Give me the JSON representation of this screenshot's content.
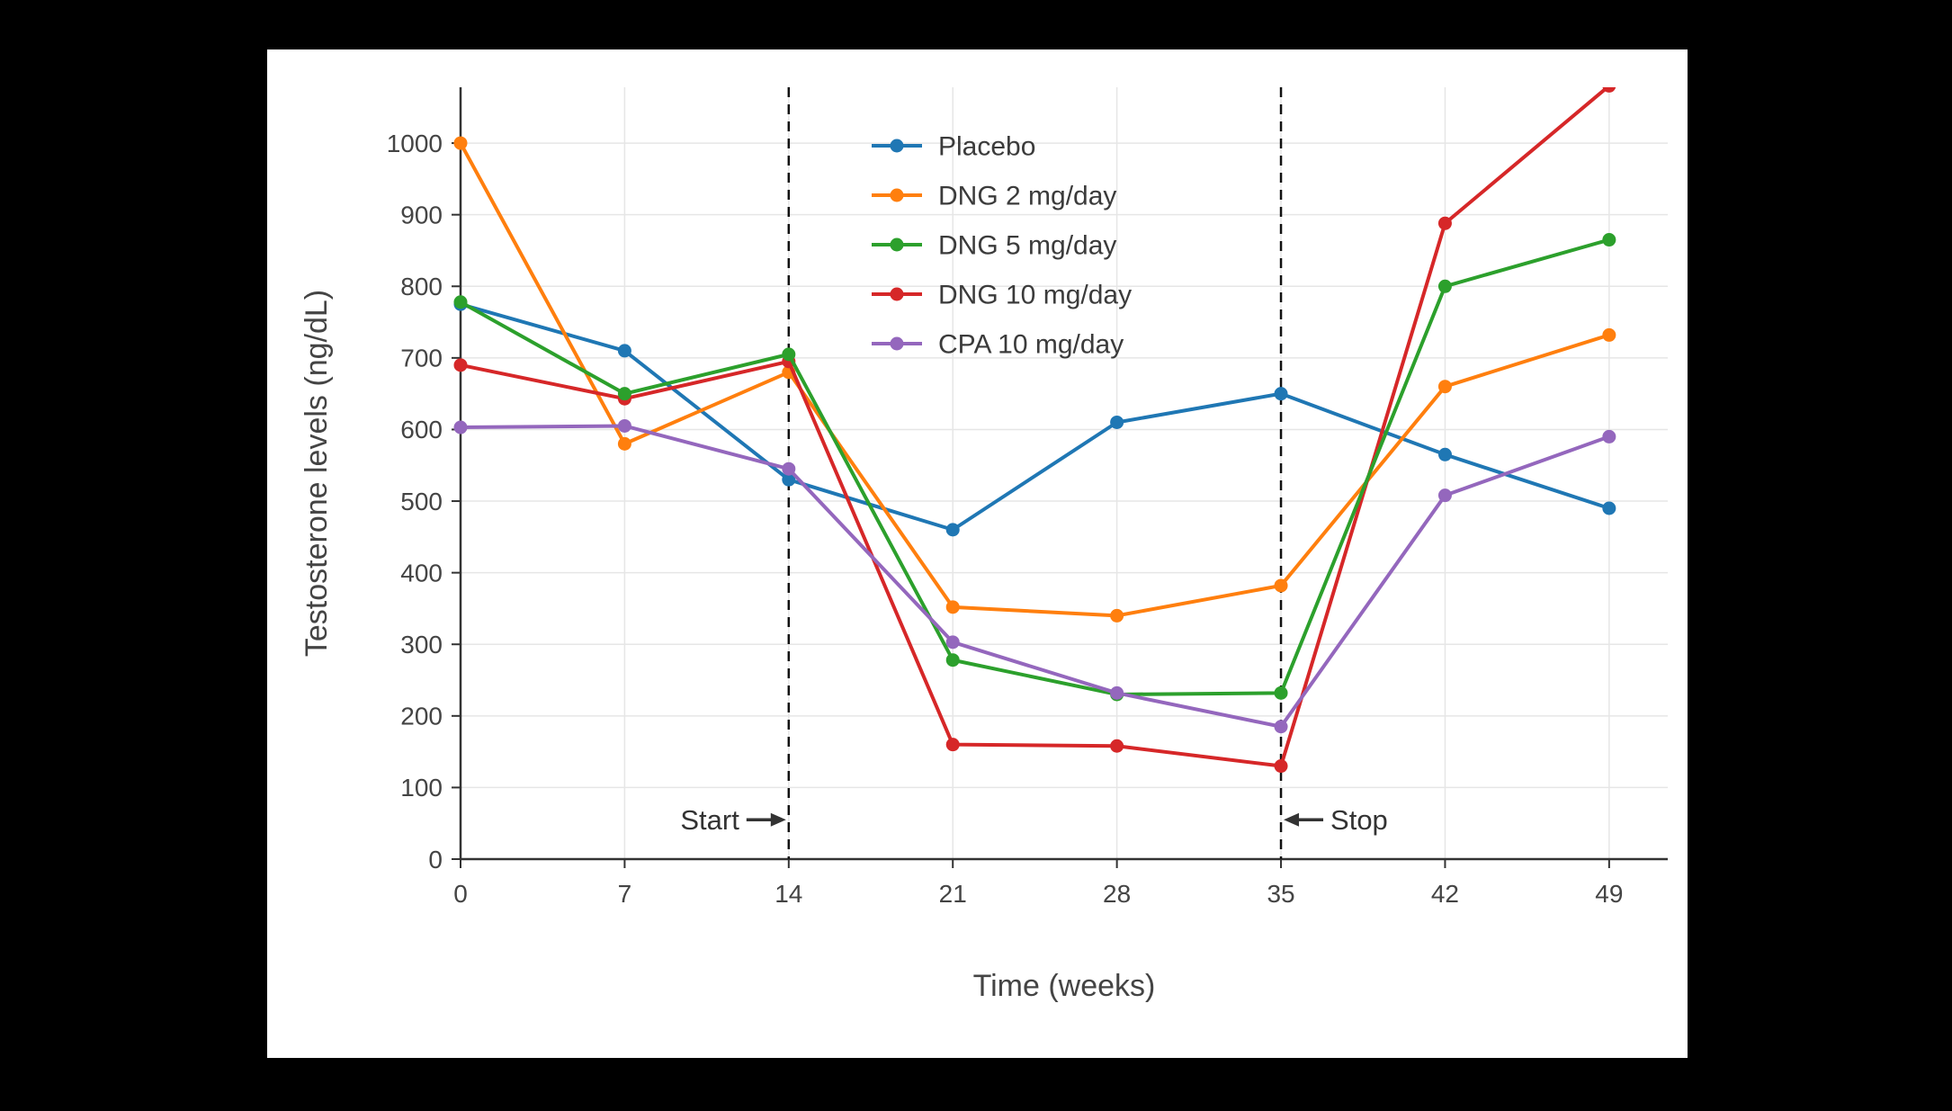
{
  "page": {
    "background_color": "#000000",
    "panel_color": "#ffffff"
  },
  "chart_data": {
    "type": "line",
    "title": "",
    "xlabel": "Time (weeks)",
    "ylabel": "Testosterone levels (ng/dL)",
    "x": [
      0,
      7,
      14,
      21,
      28,
      35,
      42,
      49
    ],
    "x_ticks": [
      0,
      7,
      14,
      21,
      28,
      35,
      42,
      49
    ],
    "y_ticks": [
      0,
      100,
      200,
      300,
      400,
      500,
      600,
      700,
      800,
      900,
      1000
    ],
    "xlim": [
      0,
      51.5
    ],
    "ylim": [
      0,
      1078
    ],
    "grid": true,
    "legend_position": "inside-top-center",
    "series": [
      {
        "name": "Placebo",
        "color": "#1f77b4",
        "values": [
          775,
          710,
          530,
          460,
          610,
          650,
          565,
          490
        ]
      },
      {
        "name": "DNG 2 mg/day",
        "color": "#ff7f0e",
        "values": [
          1000,
          580,
          680,
          352,
          340,
          382,
          660,
          732
        ]
      },
      {
        "name": "DNG 5 mg/day",
        "color": "#2ca02c",
        "values": [
          778,
          650,
          705,
          278,
          230,
          232,
          800,
          865
        ]
      },
      {
        "name": "DNG 10 mg/day",
        "color": "#d62728",
        "values": [
          690,
          643,
          695,
          160,
          158,
          130,
          888,
          1080
        ]
      },
      {
        "name": "CPA 10 mg/day",
        "color": "#9467bd",
        "values": [
          603,
          605,
          545,
          303,
          232,
          185,
          508,
          590
        ]
      }
    ],
    "vlines": [
      {
        "x": 14,
        "style": "dashed"
      },
      {
        "x": 35,
        "style": "dashed"
      }
    ],
    "annotations": [
      {
        "text": "Start",
        "x": 14,
        "y": 55,
        "side": "left"
      },
      {
        "text": "Stop",
        "x": 35,
        "y": 55,
        "side": "right"
      }
    ],
    "colors": {
      "grid": "#e6e6e6",
      "axis": "#333333",
      "text": "#444444",
      "annotation": "#333333",
      "vline": "#111111"
    }
  }
}
